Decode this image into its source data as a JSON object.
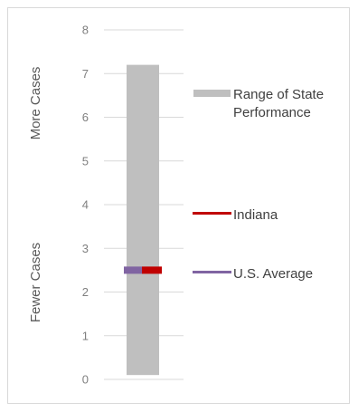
{
  "chart_data": {
    "type": "bar",
    "title": "",
    "xlabel": "",
    "ylabel_top": "More Cases",
    "ylabel_bottom": "Fewer Cases",
    "ylim": [
      0,
      8
    ],
    "yticks": [
      "0",
      "1",
      "2",
      "3",
      "4",
      "5",
      "6",
      "7",
      "8"
    ],
    "grid": true,
    "range": {
      "name": "Range of State Performance",
      "min": 0.1,
      "max": 7.2,
      "color": "#bfbfbf"
    },
    "markers": [
      {
        "name": "U.S. Average",
        "value": 2.5,
        "color": "#8064a2"
      },
      {
        "name": "Indiana",
        "value": 2.5,
        "color": "#c00000"
      }
    ],
    "legend": {
      "placement": "right",
      "entries": [
        {
          "label": "Range of State Performance",
          "color": "#bfbfbf"
        },
        {
          "label": "Indiana",
          "color": "#c00000"
        },
        {
          "label": "U.S. Average",
          "color": "#8064a2"
        }
      ]
    }
  }
}
